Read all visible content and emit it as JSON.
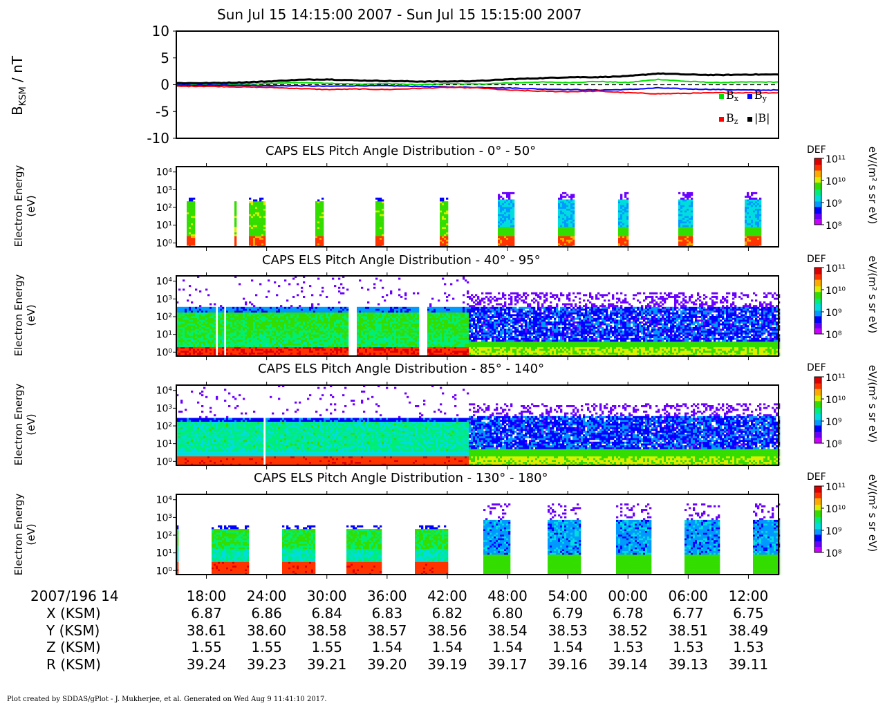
{
  "title": "Sun Jul 15 14:15:00 2007 - Sun Jul 15 15:15:00 2007",
  "colors": {
    "bx": "#00e000",
    "by": "#0000ff",
    "bz": "#ff0000",
    "btot": "#000000",
    "colorbar": [
      "#cc00ff",
      "#6a00ff",
      "#0000ff",
      "#0099ff",
      "#00dddd",
      "#00ee77",
      "#33dd00",
      "#ddee00",
      "#ffaa00",
      "#ff3300",
      "#dd0000"
    ]
  },
  "chart_data": [
    {
      "type": "line",
      "title": "",
      "ylabel": "B_KSM / nT",
      "ylabel_main": "B",
      "ylabel_sub": "KSM",
      "ylabel_unit": " / nT",
      "ylim": [
        -10,
        10
      ],
      "yticks": [
        "10",
        "5",
        "0",
        "-5",
        "-10"
      ],
      "xlim_minutes": [
        0,
        60
      ],
      "legend": [
        "Bx",
        "By",
        "Bz",
        "|B|"
      ],
      "legend_placement": "bottom-right",
      "x": [
        0,
        3,
        6,
        9,
        12,
        15,
        18,
        21,
        24,
        27,
        30,
        33,
        36,
        39,
        42,
        45,
        48,
        51,
        54,
        57,
        60
      ],
      "series": [
        {
          "name": "Bx",
          "values": [
            0.0,
            0.0,
            0.1,
            0.2,
            0.4,
            0.3,
            0.1,
            0.2,
            0.0,
            0.2,
            0.1,
            0.3,
            0.5,
            0.4,
            0.6,
            0.4,
            1.0,
            0.6,
            0.4,
            0.5,
            0.5
          ]
        },
        {
          "name": "By",
          "values": [
            -0.1,
            -0.1,
            -0.1,
            -0.2,
            -0.2,
            -0.3,
            -0.2,
            -0.2,
            -0.3,
            -0.4,
            -0.5,
            -0.6,
            -0.8,
            -0.9,
            -1.0,
            -0.9,
            -0.6,
            -0.8,
            -0.9,
            -1.0,
            -1.0
          ]
        },
        {
          "name": "Bz",
          "values": [
            -0.3,
            -0.3,
            -0.4,
            -0.5,
            -0.7,
            -0.9,
            -0.8,
            -0.9,
            -0.7,
            -0.5,
            -0.6,
            -1.0,
            -1.2,
            -1.3,
            -1.2,
            -1.5,
            -1.7,
            -1.6,
            -1.5,
            -1.5,
            -1.5
          ]
        },
        {
          "name": "|B|",
          "values": [
            0.3,
            0.3,
            0.4,
            0.6,
            0.9,
            1.0,
            0.8,
            0.7,
            0.6,
            0.6,
            0.7,
            1.0,
            1.2,
            1.4,
            1.4,
            1.6,
            2.1,
            1.9,
            1.8,
            1.9,
            1.9
          ]
        }
      ]
    },
    {
      "type": "heatmap",
      "title": "CAPS ELS Pitch Angle Distribution - 0° - 50°",
      "ylabel": "Electron Energy (eV)",
      "ylabel_line1": "Electron Energy",
      "ylabel_line2": "(eV)",
      "yscale": "log",
      "ylim": [
        0.6,
        20000
      ],
      "yticks": [
        "10⁴",
        "10³",
        "10²",
        "10¹",
        "10⁰"
      ],
      "colorbar_label": "eV/(m² s sr eV)",
      "colorbar_title": "DEF",
      "colorbar_ticks": [
        "10¹¹",
        "10¹⁰",
        "10⁹",
        "10⁸"
      ],
      "blocks_minutes": [
        [
          1.0,
          1.7
        ],
        [
          5.7,
          5.8
        ],
        [
          7.2,
          8.8
        ],
        [
          13.7,
          14.5
        ],
        [
          19.7,
          20.5
        ],
        [
          26.1,
          26.9
        ],
        [
          31.9,
          33.6
        ],
        [
          38.0,
          39.5
        ],
        [
          44.0,
          44.9
        ],
        [
          50.0,
          51.4
        ],
        [
          56.5,
          58.2
        ]
      ]
    },
    {
      "type": "heatmap",
      "title": "CAPS ELS Pitch Angle Distribution - 40° - 95°",
      "ylabel": "Electron Energy (eV)",
      "ylabel_line1": "Electron Energy",
      "ylabel_line2": "(eV)",
      "yscale": "log",
      "ylim": [
        0.6,
        20000
      ],
      "yticks": [
        "10⁴",
        "10³",
        "10²",
        "10¹",
        "10⁰"
      ],
      "colorbar_label": "eV/(m² s sr eV)",
      "colorbar_title": "DEF",
      "colorbar_ticks": [
        "10¹¹",
        "10¹⁰",
        "10⁹",
        "10⁸"
      ],
      "gaps_minutes": [
        [
          3.9,
          4.1
        ],
        [
          4.6,
          4.8
        ],
        [
          17.1,
          17.8
        ],
        [
          24.0,
          24.8
        ]
      ]
    },
    {
      "type": "heatmap",
      "title": "CAPS ELS Pitch Angle Distribution - 85° - 140°",
      "ylabel": "Electron Energy (eV)",
      "ylabel_line1": "Electron Energy",
      "ylabel_line2": "(eV)",
      "yscale": "log",
      "ylim": [
        0.6,
        20000
      ],
      "yticks": [
        "10⁴",
        "10³",
        "10²",
        "10¹",
        "10⁰"
      ],
      "colorbar_label": "eV/(m² s sr eV)",
      "colorbar_title": "DEF",
      "colorbar_ticks": [
        "10¹¹",
        "10¹⁰",
        "10⁹",
        "10⁸"
      ],
      "gaps_minutes": [
        [
          8.5,
          8.7
        ]
      ]
    },
    {
      "type": "heatmap",
      "title": "CAPS ELS Pitch Angle Distribution - 130° - 180°",
      "ylabel": "Electron Energy (eV)",
      "ylabel_line1": "Electron Energy",
      "ylabel_line2": "(eV)",
      "yscale": "log",
      "ylim": [
        0.6,
        20000
      ],
      "yticks": [
        "10⁴",
        "10³",
        "10²",
        "10¹",
        "10⁰"
      ],
      "colorbar_label": "eV/(m² s sr eV)",
      "colorbar_title": "DEF",
      "colorbar_ticks": [
        "10¹¹",
        "10¹⁰",
        "10⁹",
        "10⁸"
      ],
      "blocks_minutes": [
        [
          0.0,
          0.2
        ],
        [
          3.5,
          7.2
        ],
        [
          10.4,
          13.8
        ],
        [
          16.9,
          20.4
        ],
        [
          23.7,
          27.0
        ],
        [
          30.4,
          33.2
        ],
        [
          36.9,
          40.1
        ],
        [
          43.7,
          47.3
        ],
        [
          50.6,
          54.0
        ],
        [
          57.3,
          60.0
        ]
      ]
    }
  ],
  "ephemeris": {
    "date_label": "2007/196 14",
    "row_labels": [
      "X (KSM)",
      "Y (KSM)",
      "Z (KSM)",
      "R (KSM)"
    ],
    "times": [
      "18:00",
      "24:00",
      "30:00",
      "36:00",
      "42:00",
      "48:00",
      "54:00",
      "00:00",
      "06:00",
      "12:00"
    ],
    "rows": [
      [
        "6.87",
        "6.86",
        "6.84",
        "6.83",
        "6.82",
        "6.80",
        "6.79",
        "6.78",
        "6.77",
        "6.75"
      ],
      [
        "38.61",
        "38.60",
        "38.58",
        "38.57",
        "38.56",
        "38.54",
        "38.53",
        "38.52",
        "38.51",
        "38.49"
      ],
      [
        "1.55",
        "1.55",
        "1.55",
        "1.54",
        "1.54",
        "1.54",
        "1.54",
        "1.53",
        "1.53",
        "1.53"
      ],
      [
        "39.24",
        "39.23",
        "39.21",
        "39.20",
        "39.19",
        "39.17",
        "39.16",
        "39.14",
        "39.13",
        "39.11"
      ]
    ]
  },
  "footer": "Plot created by SDDAS/gPlot - J. Mukherjee, et al.  Generated on Wed Aug 9 11:41:10 2017."
}
